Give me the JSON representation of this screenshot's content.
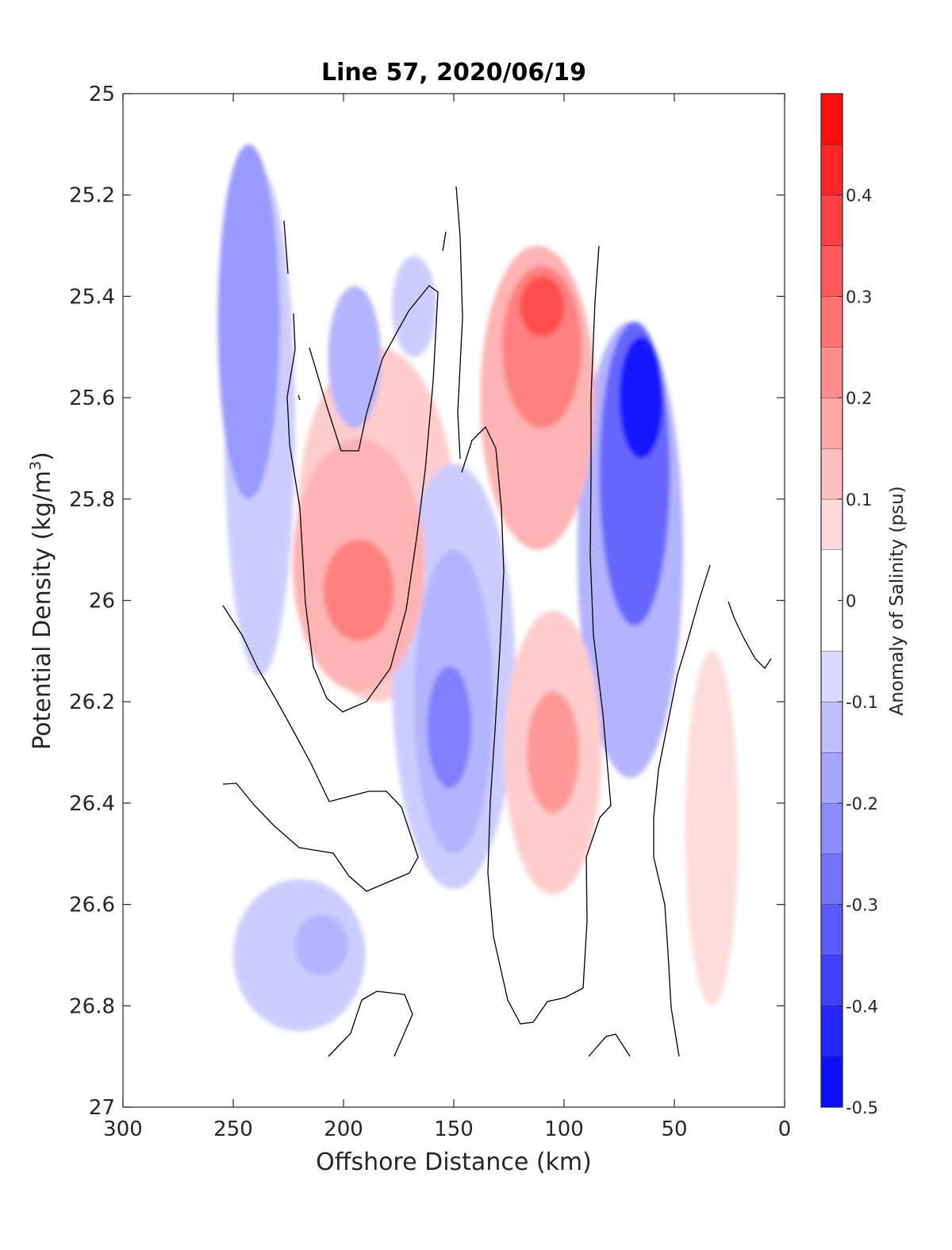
{
  "chart_data": {
    "type": "heatmap",
    "title": "Line 57, 2020/06/19",
    "xlabel": "Offshore Distance (km)",
    "ylabel_main": "Potential Density (kg/m",
    "ylabel_sup": "3",
    "ylabel_close": ")",
    "xlim": [
      300,
      0
    ],
    "x_reversed": true,
    "ylim": [
      25,
      27
    ],
    "y_reversed": true,
    "x_ticks": [
      300,
      250,
      200,
      150,
      100,
      50,
      0
    ],
    "x_tick_labels": [
      "300",
      "250",
      "200",
      "150",
      "100",
      "50",
      "0"
    ],
    "y_ticks": [
      25,
      25.2,
      25.4,
      25.6,
      25.8,
      26,
      26.2,
      26.4,
      26.6,
      26.8,
      27
    ],
    "y_tick_labels": [
      "25",
      "25.2",
      "25.4",
      "25.6",
      "25.8",
      "26",
      "26.2",
      "26.4",
      "26.6",
      "26.8",
      "27"
    ],
    "colorbar": {
      "label": "Anomaly of Salinity (psu)",
      "range": [
        -0.5,
        0.5
      ],
      "levels": [
        -0.5,
        -0.45,
        -0.4,
        -0.35,
        -0.3,
        -0.25,
        -0.2,
        -0.15,
        -0.1,
        -0.05,
        0.05,
        0.1,
        0.15,
        0.2,
        0.25,
        0.3,
        0.35,
        0.4,
        0.45,
        0.5
      ],
      "ticks": [
        -0.5,
        -0.4,
        -0.3,
        -0.2,
        -0.1,
        0,
        0.1,
        0.2,
        0.3,
        0.4
      ],
      "tick_labels": [
        "-0.5",
        "-0.4",
        "-0.3",
        "-0.2",
        "-0.1",
        "0",
        "0.1",
        "0.2",
        "0.3",
        "0.4"
      ],
      "colormap": "blue-white-red"
    },
    "features": [
      {
        "kind": "negative",
        "x": 243,
        "y": 25.45,
        "rx": 14,
        "ry": 0.35,
        "value": -0.2
      },
      {
        "kind": "negative",
        "x": 238,
        "y": 25.65,
        "rx": 16,
        "ry": 0.5,
        "value": -0.1
      },
      {
        "kind": "negative",
        "x": 195,
        "y": 25.52,
        "rx": 12,
        "ry": 0.14,
        "value": -0.15
      },
      {
        "kind": "negative",
        "x": 168,
        "y": 25.42,
        "rx": 10,
        "ry": 0.1,
        "value": -0.1
      },
      {
        "kind": "positive",
        "x": 193,
        "y": 25.98,
        "rx": 16,
        "ry": 0.1,
        "value": 0.25
      },
      {
        "kind": "positive",
        "x": 193,
        "y": 25.93,
        "rx": 30,
        "ry": 0.25,
        "value": 0.15
      },
      {
        "kind": "positive",
        "x": 185,
        "y": 25.85,
        "rx": 36,
        "ry": 0.35,
        "value": 0.1
      },
      {
        "kind": "negative",
        "x": 152,
        "y": 26.25,
        "rx": 10,
        "ry": 0.12,
        "value": -0.25
      },
      {
        "kind": "negative",
        "x": 150,
        "y": 26.2,
        "rx": 18,
        "ry": 0.3,
        "value": -0.15
      },
      {
        "kind": "negative",
        "x": 150,
        "y": 26.15,
        "rx": 28,
        "ry": 0.42,
        "value": -0.1
      },
      {
        "kind": "positive",
        "x": 110,
        "y": 25.42,
        "rx": 10,
        "ry": 0.06,
        "value": 0.35
      },
      {
        "kind": "positive",
        "x": 110,
        "y": 25.5,
        "rx": 18,
        "ry": 0.16,
        "value": 0.25
      },
      {
        "kind": "positive",
        "x": 112,
        "y": 25.6,
        "rx": 26,
        "ry": 0.3,
        "value": 0.15
      },
      {
        "kind": "positive",
        "x": 105,
        "y": 26.3,
        "rx": 12,
        "ry": 0.12,
        "value": 0.2
      },
      {
        "kind": "positive",
        "x": 105,
        "y": 26.3,
        "rx": 22,
        "ry": 0.28,
        "value": 0.1
      },
      {
        "kind": "negative",
        "x": 65,
        "y": 25.6,
        "rx": 10,
        "ry": 0.12,
        "value": -0.45
      },
      {
        "kind": "negative",
        "x": 68,
        "y": 25.75,
        "rx": 16,
        "ry": 0.3,
        "value": -0.3
      },
      {
        "kind": "negative",
        "x": 70,
        "y": 25.9,
        "rx": 24,
        "ry": 0.45,
        "value": -0.15
      },
      {
        "kind": "positive",
        "x": 33,
        "y": 26.45,
        "rx": 12,
        "ry": 0.35,
        "value": 0.07
      },
      {
        "kind": "negative",
        "x": 220,
        "y": 26.7,
        "rx": 30,
        "ry": 0.15,
        "value": -0.1
      },
      {
        "kind": "negative",
        "x": 210,
        "y": 26.68,
        "rx": 12,
        "ry": 0.06,
        "value": -0.15
      }
    ]
  }
}
